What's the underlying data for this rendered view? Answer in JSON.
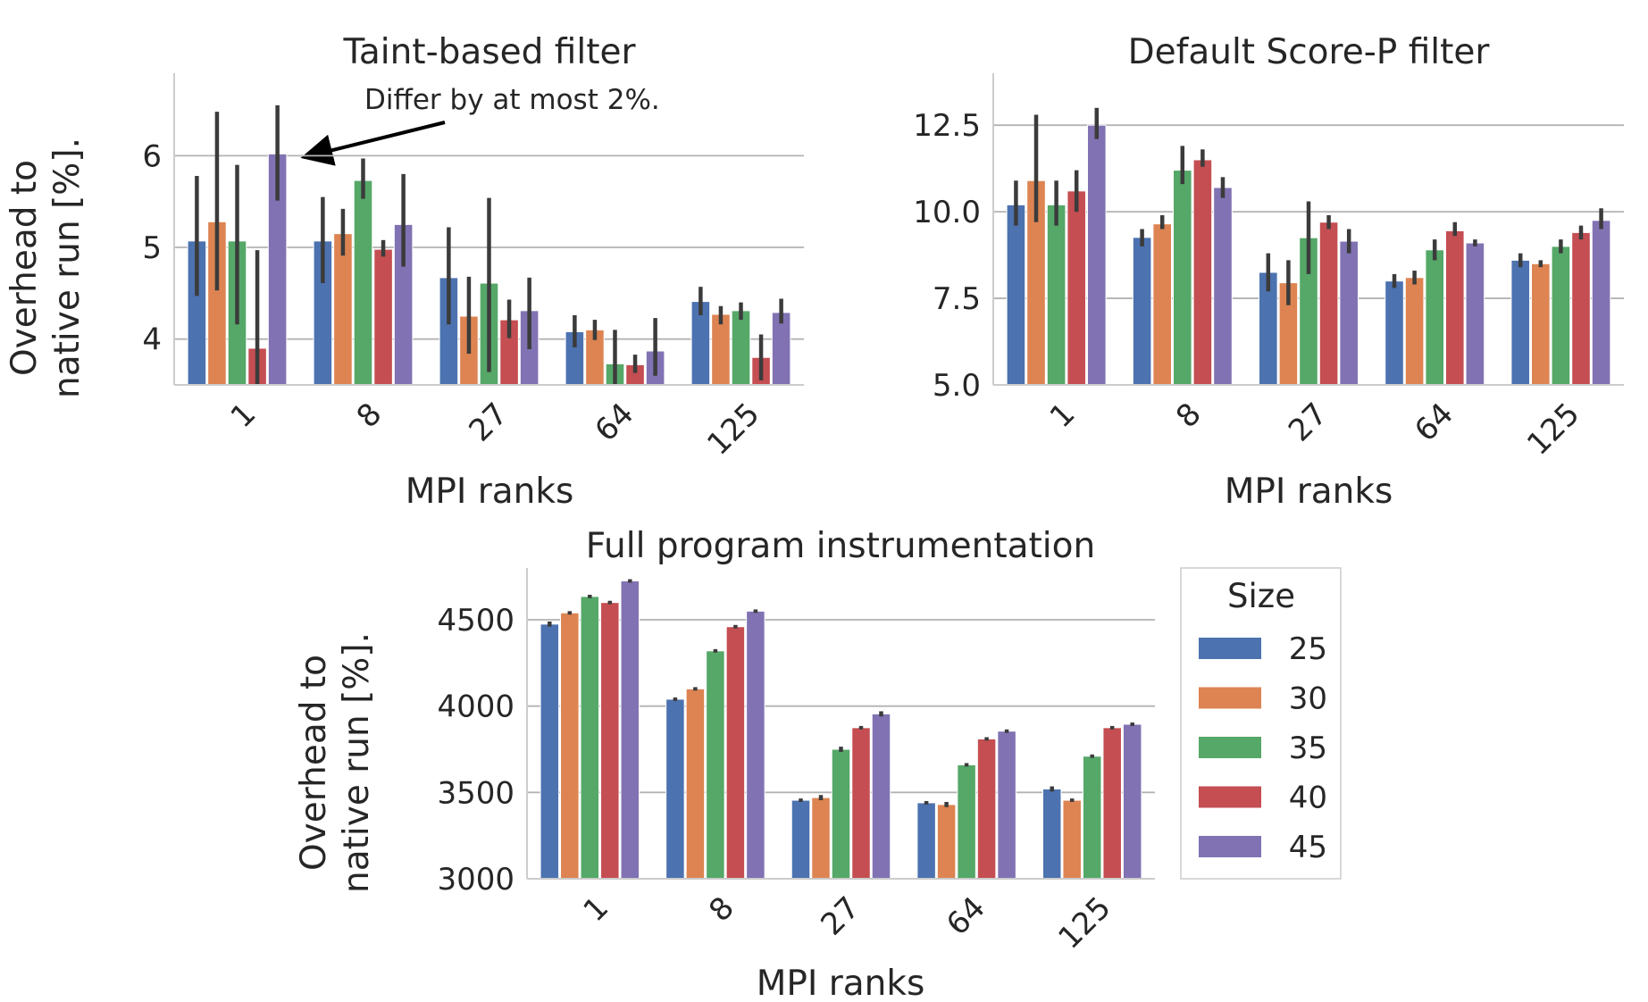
{
  "colors": {
    "series": [
      "#4c72b0",
      "#dd8452",
      "#55a868",
      "#c44e52",
      "#8172b3"
    ],
    "errorbar": "#3b3b3b",
    "grid": "#b3b3b3",
    "axis": "#cccccc"
  },
  "legend": {
    "title": "Size",
    "entries": [
      "25",
      "30",
      "35",
      "40",
      "45"
    ],
    "placement": "right of bottom panel"
  },
  "annotation": {
    "text": "Differ by at most 2%."
  },
  "chart_data": [
    {
      "type": "bar",
      "title": "Taint-based filter",
      "xlabel": "MPI ranks",
      "ylabel": "Overhead to native run [%].",
      "categories": [
        "1",
        "8",
        "27",
        "64",
        "125"
      ],
      "ylim": [
        3.5,
        6.9
      ],
      "yticks": [
        4,
        5,
        6
      ],
      "ytick_labels": [
        "4",
        "5",
        "6"
      ],
      "grid": "horizontal",
      "series": [
        {
          "name": "25",
          "values": [
            5.07,
            5.07,
            4.67,
            4.08,
            4.41
          ],
          "errors": [
            [
              4.47,
              5.78
            ],
            [
              4.61,
              5.55
            ],
            [
              4.16,
              5.22
            ],
            [
              3.91,
              4.26
            ],
            [
              4.26,
              4.57
            ]
          ]
        },
        {
          "name": "30",
          "values": [
            5.28,
            5.15,
            4.25,
            4.1,
            4.27
          ],
          "errors": [
            [
              4.53,
              6.48
            ],
            [
              4.91,
              5.42
            ],
            [
              3.84,
              4.68
            ],
            [
              3.99,
              4.21
            ],
            [
              4.16,
              4.36
            ]
          ]
        },
        {
          "name": "35",
          "values": [
            5.07,
            5.73,
            4.61,
            3.73,
            4.31
          ],
          "errors": [
            [
              4.16,
              5.9
            ],
            [
              5.53,
              5.97
            ],
            [
              3.64,
              5.54
            ],
            [
              3.5,
              4.1
            ],
            [
              4.21,
              4.4
            ]
          ]
        },
        {
          "name": "40",
          "values": [
            3.9,
            4.98,
            4.21,
            3.72,
            3.8
          ],
          "errors": [
            [
              3.5,
              4.97
            ],
            [
              4.9,
              5.08
            ],
            [
              4.01,
              4.43
            ],
            [
              3.63,
              3.83
            ],
            [
              3.55,
              4.05
            ]
          ]
        },
        {
          "name": "45",
          "values": [
            6.02,
            5.25,
            4.31,
            3.87,
            4.29
          ],
          "errors": [
            [
              5.51,
              6.55
            ],
            [
              4.79,
              5.8
            ],
            [
              3.89,
              4.67
            ],
            [
              3.6,
              4.23
            ],
            [
              4.17,
              4.44
            ]
          ]
        }
      ]
    },
    {
      "type": "bar",
      "title": "Default Score-P filter",
      "xlabel": "MPI ranks",
      "ylabel": "",
      "categories": [
        "1",
        "8",
        "27",
        "64",
        "125"
      ],
      "ylim": [
        5.0,
        14.0
      ],
      "yticks": [
        5.0,
        7.5,
        10.0,
        12.5
      ],
      "ytick_labels": [
        "5.0",
        "7.5",
        "10.0",
        "12.5"
      ],
      "grid": "horizontal",
      "series": [
        {
          "name": "25",
          "values": [
            10.2,
            9.26,
            8.25,
            8.0,
            8.6
          ],
          "errors": [
            [
              9.6,
              10.9
            ],
            [
              9.0,
              9.5
            ],
            [
              7.7,
              8.8
            ],
            [
              7.8,
              8.2
            ],
            [
              8.4,
              8.8
            ]
          ]
        },
        {
          "name": "30",
          "values": [
            10.9,
            9.65,
            7.95,
            8.1,
            8.5
          ],
          "errors": [
            [
              9.7,
              12.8
            ],
            [
              9.5,
              9.9
            ],
            [
              7.3,
              8.6
            ],
            [
              7.9,
              8.3
            ],
            [
              8.4,
              8.6
            ]
          ]
        },
        {
          "name": "35",
          "values": [
            10.2,
            11.2,
            9.25,
            8.9,
            9.0
          ],
          "errors": [
            [
              9.6,
              10.9
            ],
            [
              10.8,
              11.9
            ],
            [
              8.2,
              10.3
            ],
            [
              8.6,
              9.2
            ],
            [
              8.8,
              9.2
            ]
          ]
        },
        {
          "name": "40",
          "values": [
            10.6,
            11.5,
            9.7,
            9.45,
            9.4
          ],
          "errors": [
            [
              10.0,
              11.2
            ],
            [
              11.3,
              11.8
            ],
            [
              9.5,
              9.9
            ],
            [
              9.3,
              9.7
            ],
            [
              9.2,
              9.6
            ]
          ]
        },
        {
          "name": "45",
          "values": [
            12.5,
            10.7,
            9.15,
            9.1,
            9.75
          ],
          "errors": [
            [
              12.1,
              13.0
            ],
            [
              10.4,
              11.0
            ],
            [
              8.8,
              9.5
            ],
            [
              9.0,
              9.2
            ],
            [
              9.5,
              10.1
            ]
          ]
        }
      ]
    },
    {
      "type": "bar",
      "title": "Full program instrumentation",
      "xlabel": "MPI ranks",
      "ylabel": "Overhead to native run [%].",
      "categories": [
        "1",
        "8",
        "27",
        "64",
        "125"
      ],
      "ylim": [
        3000,
        4800
      ],
      "yticks": [
        3000,
        3500,
        4000,
        4500
      ],
      "ytick_labels": [
        "3000",
        "3500",
        "4000",
        "4500"
      ],
      "grid": "horizontal",
      "series": [
        {
          "name": "25",
          "values": [
            4475,
            4040,
            3455,
            3440,
            3520
          ],
          "errors": [
            [
              4460,
              4490
            ],
            [
              4030,
              4050
            ],
            [
              3445,
              3465
            ],
            [
              3430,
              3450
            ],
            [
              3505,
              3535
            ]
          ]
        },
        {
          "name": "30",
          "values": [
            4540,
            4100,
            3470,
            3430,
            3455
          ],
          "errors": [
            [
              4530,
              4550
            ],
            [
              4090,
              4110
            ],
            [
              3455,
              3485
            ],
            [
              3415,
              3445
            ],
            [
              3445,
              3465
            ]
          ]
        },
        {
          "name": "35",
          "values": [
            4635,
            4320,
            3750,
            3660,
            3710
          ],
          "errors": [
            [
              4625,
              4645
            ],
            [
              4310,
              4330
            ],
            [
              3735,
              3765
            ],
            [
              3650,
              3670
            ],
            [
              3700,
              3720
            ]
          ]
        },
        {
          "name": "40",
          "values": [
            4600,
            4460,
            3875,
            3810,
            3875
          ],
          "errors": [
            [
              4590,
              4610
            ],
            [
              4450,
              4470
            ],
            [
              3865,
              3885
            ],
            [
              3800,
              3820
            ],
            [
              3865,
              3885
            ]
          ]
        },
        {
          "name": "45",
          "values": [
            4725,
            4550,
            3955,
            3855,
            3895
          ],
          "errors": [
            [
              4715,
              4735
            ],
            [
              4540,
              4560
            ],
            [
              3940,
              3970
            ],
            [
              3845,
              3865
            ],
            [
              3885,
              3905
            ]
          ]
        }
      ]
    }
  ]
}
